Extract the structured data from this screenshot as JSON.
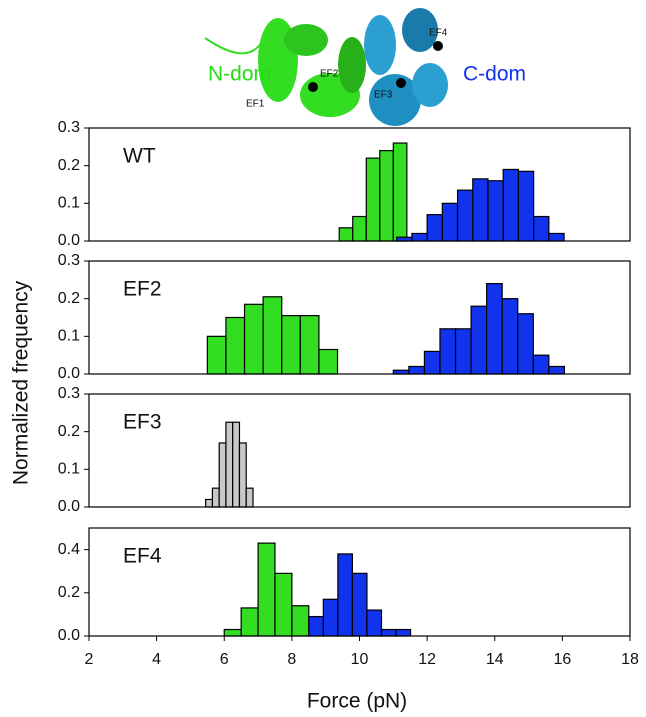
{
  "figure": {
    "xlabel": "Force (pN)",
    "ylabel": "Normalized frequency"
  },
  "structure": {
    "labels": [
      "N-dom",
      "C-dom",
      "EF1",
      "EF2",
      "EF3",
      "EF4"
    ]
  },
  "chart_data": [
    {
      "type": "histogram",
      "title": "WT",
      "xlim": [
        2,
        18
      ],
      "ylim": [
        0,
        0.3
      ],
      "yticks": [
        {
          "value": 0,
          "label": "0.0"
        },
        0.1,
        0.2,
        0.3
      ],
      "series": [
        {
          "color": "#33dd22",
          "bins": [
            9.4,
            9.8,
            10.2,
            10.6,
            11.0,
            11.4
          ],
          "values": [
            0.035,
            0.065,
            0.22,
            0.24,
            0.26
          ]
        },
        {
          "color": "#1133ee",
          "bins": [
            11.1,
            11.55,
            12.0,
            12.45,
            12.9,
            13.35,
            13.8,
            14.25,
            14.7,
            15.15,
            15.6,
            16.05
          ],
          "values": [
            0.01,
            0.02,
            0.07,
            0.1,
            0.135,
            0.165,
            0.16,
            0.19,
            0.185,
            0.065,
            0.02
          ]
        }
      ]
    },
    {
      "type": "histogram",
      "title": "EF2",
      "xlim": [
        2,
        18
      ],
      "ylim": [
        0,
        0.3
      ],
      "yticks": [
        {
          "value": 0,
          "label": "0.0"
        },
        0.1,
        0.2,
        0.3
      ],
      "series": [
        {
          "color": "#33dd22",
          "bins": [
            5.5,
            6.05,
            6.6,
            7.15,
            7.7,
            8.25,
            8.8,
            9.35
          ],
          "values": [
            0.1,
            0.15,
            0.185,
            0.205,
            0.155,
            0.155,
            0.065
          ]
        },
        {
          "color": "#1133ee",
          "bins": [
            11.0,
            11.46,
            11.92,
            12.38,
            12.84,
            13.3,
            13.76,
            14.22,
            14.68,
            15.14,
            15.6,
            16.06
          ],
          "values": [
            0.01,
            0.02,
            0.06,
            0.12,
            0.12,
            0.18,
            0.24,
            0.2,
            0.16,
            0.05,
            0.02
          ]
        }
      ]
    },
    {
      "type": "histogram",
      "title": "EF3",
      "xlim": [
        2,
        18
      ],
      "ylim": [
        0,
        0.3
      ],
      "yticks": [
        {
          "value": 0,
          "label": "0.0"
        },
        0.1,
        0.2,
        0.3
      ],
      "series": [
        {
          "color": "#c8c8c8",
          "bins": [
            5.45,
            5.65,
            5.85,
            6.05,
            6.25,
            6.45,
            6.65,
            6.85
          ],
          "values": [
            0.02,
            0.05,
            0.17,
            0.225,
            0.225,
            0.17,
            0.05
          ]
        }
      ]
    },
    {
      "type": "histogram",
      "title": "EF4",
      "xlim": [
        2,
        18
      ],
      "ylim": [
        0,
        0.5
      ],
      "xticks": [
        2,
        4,
        6,
        8,
        10,
        12,
        14,
        16,
        18
      ],
      "yticks": [
        {
          "value": 0,
          "label": "0.0"
        },
        0.2,
        0.4
      ],
      "series": [
        {
          "color": "#33dd22",
          "bins": [
            6.0,
            6.5,
            7.0,
            7.5,
            8.0,
            8.5
          ],
          "values": [
            0.03,
            0.13,
            0.43,
            0.29,
            0.14
          ]
        },
        {
          "color": "#1133ee",
          "bins": [
            8.5,
            8.93,
            9.36,
            9.79,
            10.22,
            10.65,
            11.08,
            11.51
          ],
          "values": [
            0.09,
            0.17,
            0.38,
            0.29,
            0.12,
            0.03,
            0.03
          ]
        }
      ]
    }
  ]
}
